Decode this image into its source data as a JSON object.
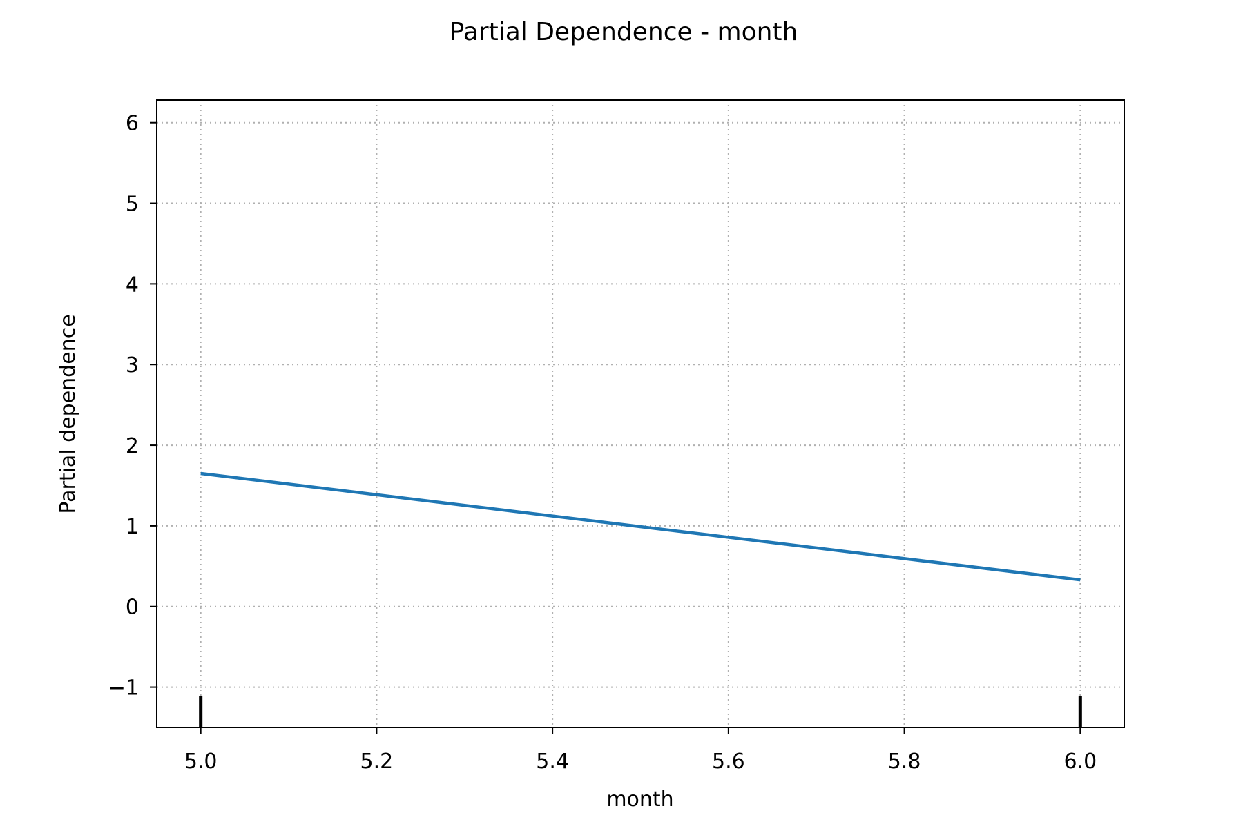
{
  "chart_data": {
    "type": "line",
    "title": "Partial Dependence - month",
    "xlabel": "month",
    "ylabel": "Partial dependence",
    "xlim": [
      4.95,
      6.05
    ],
    "ylim": [
      -1.5,
      6.28
    ],
    "x_ticks": [
      5.0,
      5.2,
      5.4,
      5.6,
      5.8,
      6.0
    ],
    "x_tick_labels": [
      "5.0",
      "5.2",
      "5.4",
      "5.6",
      "5.8",
      "6.0"
    ],
    "y_ticks": [
      -1,
      0,
      1,
      2,
      3,
      4,
      5,
      6
    ],
    "y_tick_labels": [
      "−1",
      "0",
      "1",
      "2",
      "3",
      "4",
      "5",
      "6"
    ],
    "grid": true,
    "series": [
      {
        "x": [
          5.0,
          6.0
        ],
        "y": [
          1.65,
          0.33
        ],
        "color": "#1f77b4"
      }
    ],
    "rug": [
      5.0,
      6.0
    ]
  }
}
